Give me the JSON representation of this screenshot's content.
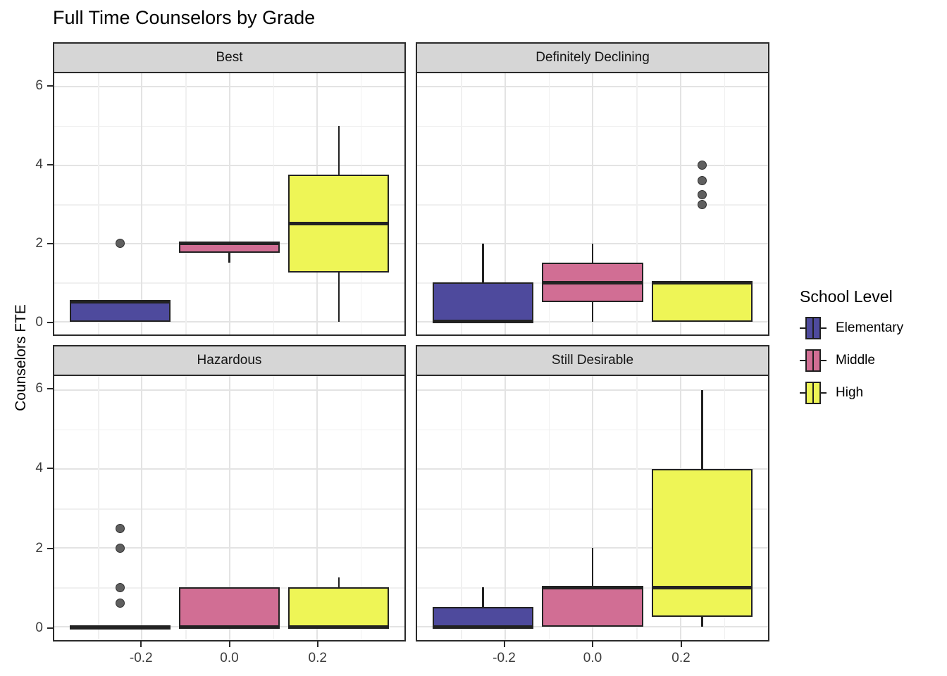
{
  "title": "Full Time Counselors by Grade",
  "y_axis_title": "Counselors FTE",
  "legend": {
    "title": "School Level",
    "items": [
      {
        "label": "Elementary",
        "color": "#4E4A9D"
      },
      {
        "label": "Middle",
        "color": "#D16E94"
      },
      {
        "label": "High",
        "color": "#EEF556"
      }
    ]
  },
  "chart_data": {
    "type": "boxplot",
    "faceted": true,
    "title": "Full Time Counselors by Grade",
    "ylabel": "Counselors FTE",
    "xlabel": "",
    "legend_title": "School Level",
    "legend_position": "right",
    "grid": "on",
    "x_ticks": [
      "-0.2",
      "0.0",
      "0.2"
    ],
    "x_tick_values": [
      -0.2,
      0.0,
      0.2
    ],
    "x_minor": [
      -0.3,
      -0.1,
      0.1,
      0.3
    ],
    "x_domain": [
      -0.4,
      0.4
    ],
    "y_ticks": [
      "0",
      "2",
      "4",
      "6"
    ],
    "y_tick_values": [
      0,
      2,
      4,
      6
    ],
    "y_minor": [
      1,
      3,
      5
    ],
    "y_domain": [
      -0.33,
      6.35
    ],
    "group_centers": [
      -0.25,
      0,
      0.25
    ],
    "box_width": 0.23,
    "groups": [
      "Elementary",
      "Middle",
      "High"
    ],
    "facets": [
      {
        "label": "Best",
        "boxes": [
          {
            "group": "Elementary",
            "whisker_low": 0,
            "q1": 0,
            "median": 0.5,
            "q3": 0.5,
            "whisker_high": 0.5,
            "outliers": [
              2
            ]
          },
          {
            "group": "Middle",
            "whisker_low": 1.5,
            "q1": 1.75,
            "median": 2,
            "q3": 2,
            "whisker_high": 2,
            "outliers": []
          },
          {
            "group": "High",
            "whisker_low": 0,
            "q1": 1.25,
            "median": 2.5,
            "q3": 3.75,
            "whisker_high": 5,
            "outliers": []
          }
        ]
      },
      {
        "label": "Definitely Declining",
        "boxes": [
          {
            "group": "Elementary",
            "whisker_low": 0,
            "q1": 0,
            "median": 0,
            "q3": 1,
            "whisker_high": 2,
            "outliers": []
          },
          {
            "group": "Middle",
            "whisker_low": 0,
            "q1": 0.5,
            "median": 1,
            "q3": 1.5,
            "whisker_high": 2,
            "outliers": []
          },
          {
            "group": "High",
            "whisker_low": 0,
            "q1": 0,
            "median": 1,
            "q3": 1,
            "whisker_high": 1,
            "outliers": [
              3,
              3.25,
              3.6,
              4
            ]
          }
        ]
      },
      {
        "label": "Hazardous",
        "boxes": [
          {
            "group": "Elementary",
            "whisker_low": 0,
            "q1": 0,
            "median": 0,
            "q3": 0,
            "whisker_high": 0,
            "outliers": [
              0.6,
              1,
              2,
              2.5
            ]
          },
          {
            "group": "Middle",
            "whisker_low": 0,
            "q1": 0,
            "median": 0,
            "q3": 1,
            "whisker_high": 1,
            "outliers": []
          },
          {
            "group": "High",
            "whisker_low": 0,
            "q1": 0,
            "median": 0,
            "q3": 1,
            "whisker_high": 1.25,
            "outliers": []
          }
        ]
      },
      {
        "label": "Still Desirable",
        "boxes": [
          {
            "group": "Elementary",
            "whisker_low": 0,
            "q1": 0,
            "median": 0,
            "q3": 0.5,
            "whisker_high": 1,
            "outliers": []
          },
          {
            "group": "Middle",
            "whisker_low": 0,
            "q1": 0,
            "median": 1,
            "q3": 1,
            "whisker_high": 2,
            "outliers": []
          },
          {
            "group": "High",
            "whisker_low": 0,
            "q1": 0.25,
            "median": 1,
            "q3": 4,
            "whisker_high": 6,
            "outliers": []
          }
        ]
      }
    ],
    "colors": {
      "Elementary": "#4E4A9D",
      "Middle": "#D16E94",
      "High": "#EEF556",
      "stroke": "#222222",
      "outlier_fill": "#5f5f5f",
      "strip_bg": "#d6d6d6",
      "grid_major": "#e3e3e3",
      "grid_minor": "#f0f0f0"
    }
  }
}
